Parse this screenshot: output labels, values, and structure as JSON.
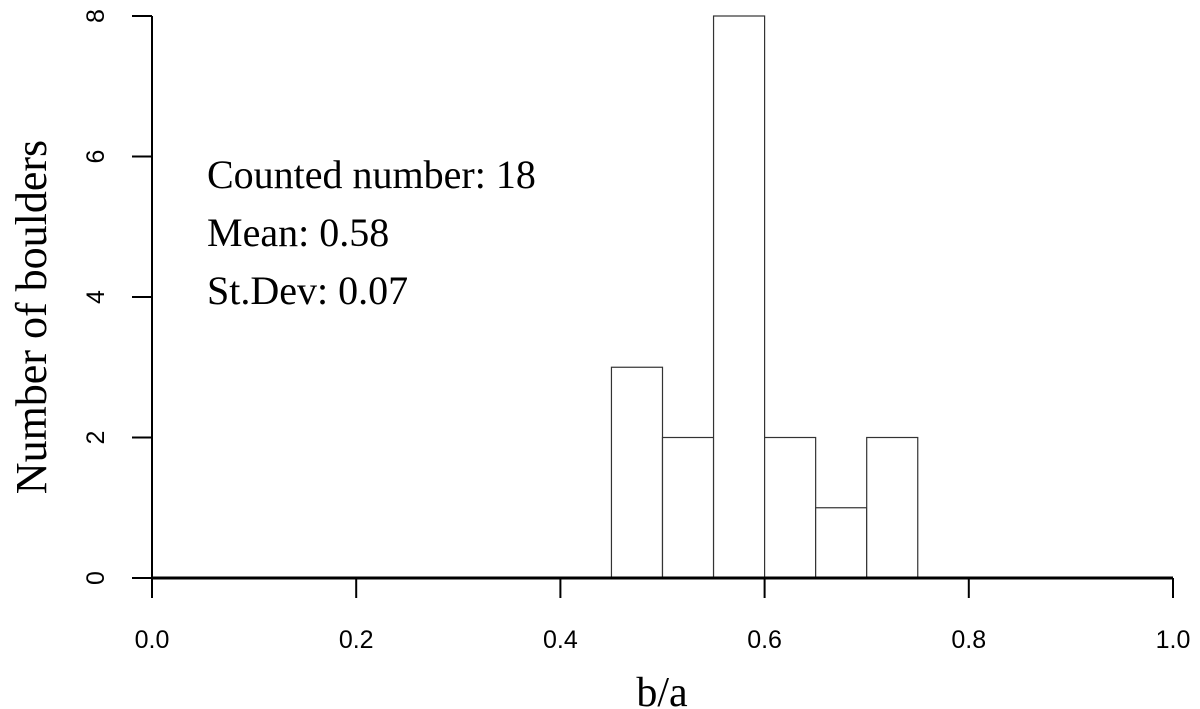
{
  "chart_data": {
    "type": "histogram",
    "x_label": "b/a",
    "y_label": "Number of boulders",
    "annotations": [
      "Counted number: 18",
      "Mean: 0.58",
      "St.Dev: 0.07"
    ],
    "bins": [
      0.45,
      0.5,
      0.55,
      0.6,
      0.65,
      0.7,
      0.75
    ],
    "values": [
      3,
      2,
      8,
      2,
      1,
      2
    ],
    "color": "#ffffff",
    "edgecolor": "#333333",
    "xlim": [
      0,
      1
    ],
    "xticks": [
      {
        "value": 0,
        "label": "0.0"
      },
      0.2,
      0.4,
      0.6,
      0.8,
      {
        "value": 1,
        "label": "1.0"
      }
    ],
    "ylim": [
      0,
      8
    ],
    "yticks": [
      0,
      2,
      4,
      6,
      8
    ],
    "grid": false
  }
}
